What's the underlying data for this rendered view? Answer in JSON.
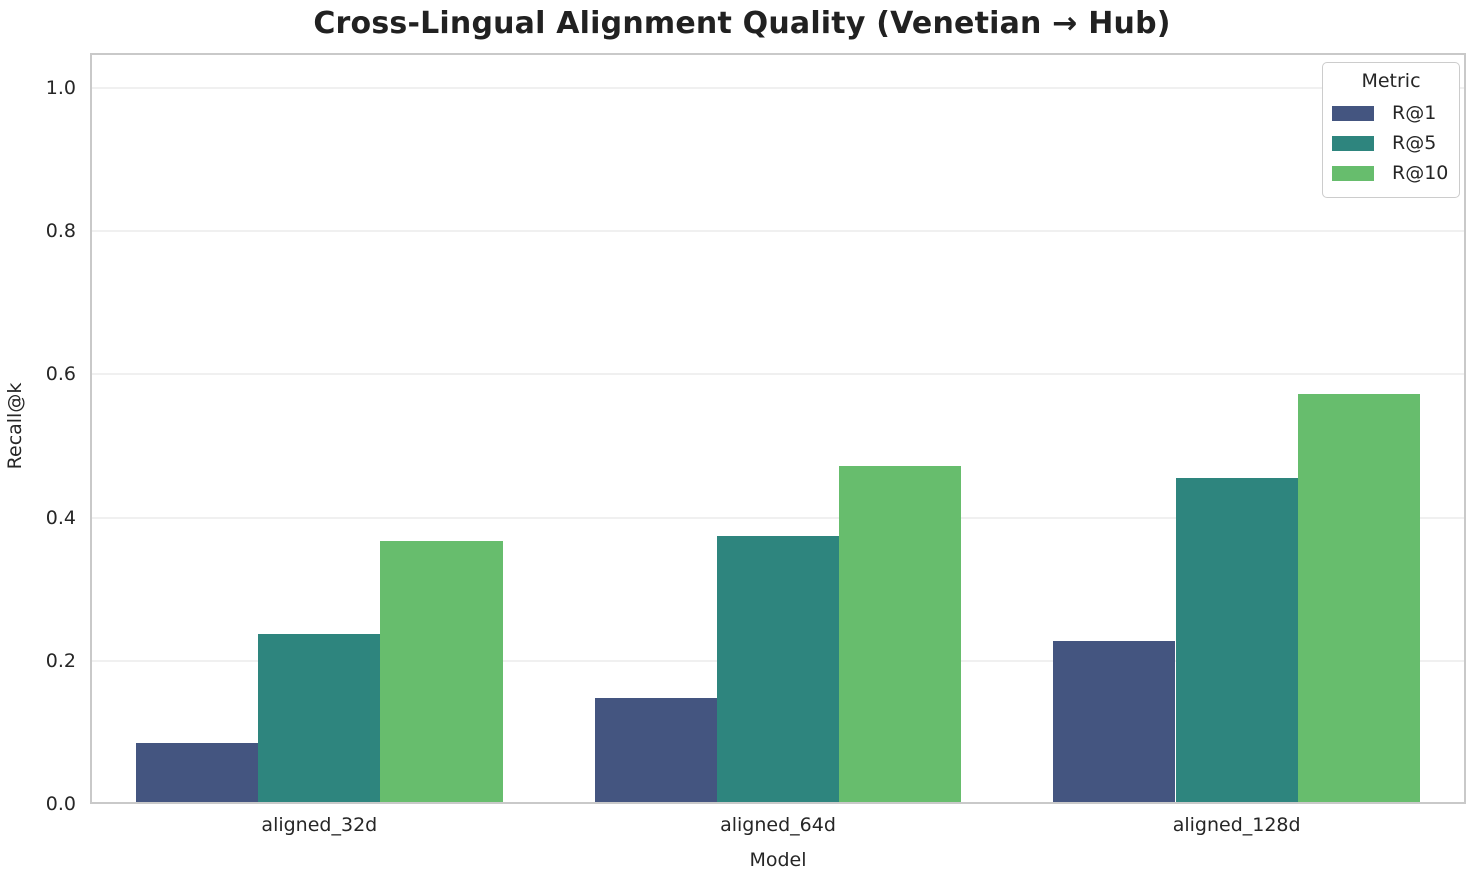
{
  "chart_data": {
    "type": "bar",
    "title": "Cross-Lingual Alignment Quality (Venetian → Hub)",
    "xlabel": "Model",
    "ylabel": "Recall@k",
    "categories": [
      "aligned_32d",
      "aligned_64d",
      "aligned_128d"
    ],
    "series": [
      {
        "name": "R@1",
        "color": "#445580",
        "values": [
          0.085,
          0.148,
          0.227
        ]
      },
      {
        "name": "R@5",
        "color": "#2e857e",
        "values": [
          0.238,
          0.375,
          0.456
        ]
      },
      {
        "name": "R@10",
        "color": "#67bd6d",
        "values": [
          0.368,
          0.472,
          0.572
        ]
      }
    ],
    "ylim": [
      0.0,
      1.05
    ],
    "yticks": [
      0.0,
      0.2,
      0.4,
      0.6,
      0.8,
      1.0
    ],
    "grid": true,
    "legend_title": "Metric",
    "legend_position": "upper right"
  },
  "style": {
    "grid_color": "#f0f0f0",
    "spine_color": "#c9c9c9",
    "text_color": "#262626",
    "background": "#ffffff"
  }
}
